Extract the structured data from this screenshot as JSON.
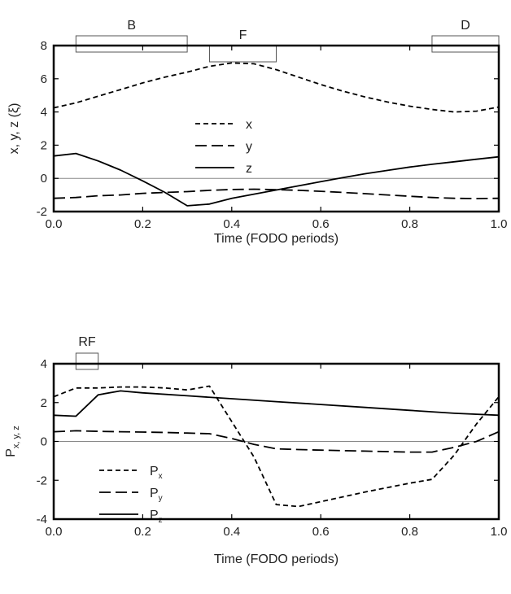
{
  "chart_data": [
    {
      "type": "line",
      "ylabel": "x, y, z (ξ)",
      "xlabel": "Time (FODO periods)",
      "xlim": [
        0.0,
        1.0
      ],
      "ylim": [
        -2,
        8
      ],
      "xticks": [
        "0.0",
        "0.2",
        "0.4",
        "0.6",
        "0.8",
        "1.0"
      ],
      "yticks": [
        "-2",
        "0",
        "2",
        "4",
        "6",
        "8"
      ],
      "zero_line": true,
      "legend_position": "center-left",
      "elements": [
        {
          "label": "B",
          "x0": 0.05,
          "x1": 0.3,
          "side": "top",
          "depth": 0.8
        },
        {
          "label": "F",
          "x0": 0.35,
          "x1": 0.5,
          "side": "bottom",
          "depth": 0.8
        },
        {
          "label": "D",
          "x0": 0.85,
          "x1": 1.0,
          "side": "top",
          "depth": 0.8
        }
      ],
      "series": [
        {
          "name": "x",
          "dash": "short",
          "x": [
            0,
            0.05,
            0.1,
            0.15,
            0.2,
            0.25,
            0.3,
            0.35,
            0.4,
            0.45,
            0.5,
            0.55,
            0.6,
            0.65,
            0.7,
            0.75,
            0.8,
            0.85,
            0.9,
            0.95,
            1.0
          ],
          "y": [
            4.25,
            4.55,
            4.95,
            5.35,
            5.75,
            6.1,
            6.4,
            6.75,
            6.95,
            6.9,
            6.55,
            6.1,
            5.65,
            5.25,
            4.9,
            4.6,
            4.35,
            4.15,
            4.0,
            4.05,
            4.3
          ]
        },
        {
          "name": "y",
          "dash": "long",
          "x": [
            0,
            0.05,
            0.1,
            0.15,
            0.2,
            0.25,
            0.3,
            0.35,
            0.4,
            0.45,
            0.5,
            0.55,
            0.6,
            0.65,
            0.7,
            0.75,
            0.8,
            0.85,
            0.9,
            0.95,
            1.0
          ],
          "y": [
            -1.2,
            -1.15,
            -1.05,
            -1.0,
            -0.9,
            -0.85,
            -0.8,
            -0.72,
            -0.67,
            -0.65,
            -0.68,
            -0.72,
            -0.78,
            -0.85,
            -0.92,
            -1.0,
            -1.08,
            -1.15,
            -1.2,
            -1.22,
            -1.2
          ]
        },
        {
          "name": "z",
          "dash": "solid",
          "x": [
            0,
            0.05,
            0.1,
            0.15,
            0.2,
            0.25,
            0.3,
            0.35,
            0.4,
            0.45,
            0.5,
            0.55,
            0.6,
            0.65,
            0.7,
            0.75,
            0.8,
            0.85,
            0.9,
            0.95,
            1.0
          ],
          "y": [
            1.35,
            1.5,
            1.05,
            0.5,
            -0.15,
            -0.85,
            -1.65,
            -1.55,
            -1.2,
            -0.95,
            -0.7,
            -0.45,
            -0.2,
            0.05,
            0.28,
            0.48,
            0.68,
            0.85,
            1.0,
            1.15,
            1.3
          ]
        }
      ]
    },
    {
      "type": "line",
      "ylabel": "P",
      "ylabel_sub": "x, y, z",
      "xlabel": "Time (FODO periods)",
      "xlim": [
        0.0,
        1.0
      ],
      "ylim": [
        -4,
        4
      ],
      "xticks": [
        "0.0",
        "0.2",
        "0.4",
        "0.6",
        "0.8",
        "1.0"
      ],
      "yticks": [
        "-4",
        "-2",
        "0",
        "2",
        "4"
      ],
      "zero_line": true,
      "legend_position": "bottom-left",
      "elements": [
        {
          "label": "RF",
          "x0": 0.05,
          "x1": 0.1,
          "side": "top",
          "depth": 0.6
        }
      ],
      "series": [
        {
          "name": "P",
          "sub": "x",
          "dash": "short",
          "x": [
            0,
            0.05,
            0.1,
            0.15,
            0.2,
            0.25,
            0.3,
            0.35,
            0.45,
            0.5,
            0.55,
            0.6,
            0.7,
            0.8,
            0.85,
            0.9,
            0.95,
            1.0
          ],
          "y": [
            2.3,
            2.75,
            2.75,
            2.8,
            2.8,
            2.75,
            2.65,
            2.85,
            -0.8,
            -3.25,
            -3.35,
            -3.1,
            -2.6,
            -2.15,
            -1.95,
            -0.7,
            0.9,
            2.3
          ]
        },
        {
          "name": "P",
          "sub": "y",
          "dash": "long",
          "x": [
            0,
            0.05,
            0.1,
            0.15,
            0.2,
            0.25,
            0.3,
            0.35,
            0.4,
            0.45,
            0.5,
            0.55,
            0.6,
            0.7,
            0.8,
            0.85,
            0.9,
            0.95,
            1.0
          ],
          "y": [
            0.5,
            0.55,
            0.52,
            0.5,
            0.48,
            0.46,
            0.43,
            0.4,
            0.15,
            -0.15,
            -0.38,
            -0.42,
            -0.45,
            -0.5,
            -0.55,
            -0.55,
            -0.3,
            0.0,
            0.5
          ]
        },
        {
          "name": "P",
          "sub": "z",
          "dash": "solid",
          "x": [
            0,
            0.05,
            0.1,
            0.15,
            0.2,
            0.3,
            0.4,
            0.5,
            0.6,
            0.7,
            0.8,
            0.9,
            1.0
          ],
          "y": [
            1.35,
            1.3,
            2.4,
            2.6,
            2.5,
            2.35,
            2.2,
            2.05,
            1.9,
            1.75,
            1.6,
            1.45,
            1.35
          ]
        }
      ]
    }
  ]
}
